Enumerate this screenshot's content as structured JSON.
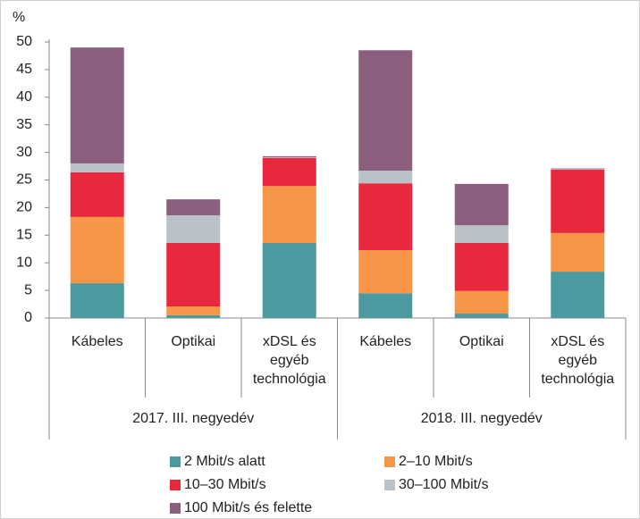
{
  "chart_data": {
    "type": "stacked_bar",
    "y_label": "%",
    "categories": [
      "Kábeles",
      "Optikai",
      "xDSL és egyéb technológia",
      "Kábeles",
      "Optikai",
      "xDSL és egyéb technológia"
    ],
    "groups": [
      "2017. III. negyedév",
      "2018. III. negyedév"
    ],
    "series": [
      {
        "name": "2 Mbit/s alatt",
        "color": "#4b9aa0",
        "values": [
          6.3,
          0.5,
          13.6,
          4.5,
          0.8,
          8.4
        ]
      },
      {
        "name": "2–10 Mbit/s",
        "color": "#f79646",
        "values": [
          12.0,
          1.6,
          10.3,
          7.8,
          4.1,
          7.0
        ]
      },
      {
        "name": "10–30 Mbit/s",
        "color": "#e8283c",
        "values": [
          8.1,
          11.5,
          5.1,
          12.1,
          8.7,
          11.5
        ]
      },
      {
        "name": "30–100 Mbit/s",
        "color": "#b9c1c8",
        "values": [
          1.6,
          5.0,
          0.1,
          2.3,
          3.2,
          0.1
        ]
      },
      {
        "name": "100 Mbit/s és felette",
        "color": "#8c5f7e",
        "values": [
          21.0,
          2.9,
          0.2,
          21.8,
          7.5,
          0.1
        ]
      }
    ],
    "ylim": [
      0,
      50
    ],
    "yticks": [
      0,
      5,
      10,
      15,
      20,
      25,
      30,
      35,
      40,
      45,
      50
    ]
  }
}
